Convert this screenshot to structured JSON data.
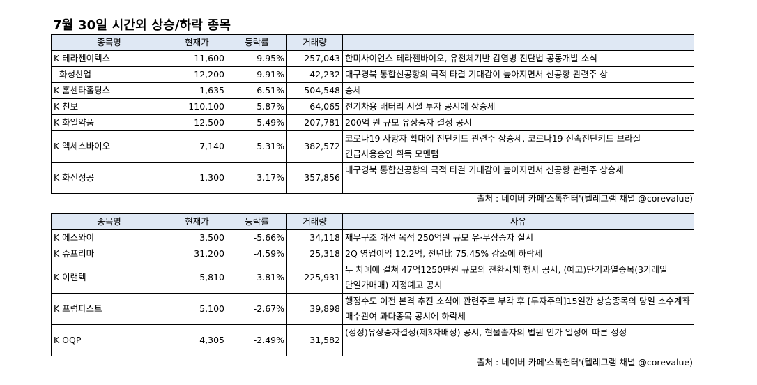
{
  "title": "7월 30일  시간외 상승/하락 종목",
  "up_table": {
    "headers": [
      "종목명",
      "현재가",
      "등락률",
      "거래량",
      ""
    ],
    "rows": [
      {
        "name": "K 테라젠이텍스",
        "price": "11,600",
        "change": "9.95%",
        "volume": "257,043",
        "reason": "한미사이언스-테라젠바이오, 유전체기반 감염병 진단법 공동개발 소식"
      },
      {
        "name": "  화성산업",
        "price": "12,200",
        "change": "9.91%",
        "volume": "42,232",
        "reason": "대구경북 통합신공항의 극적 타결 기대감이 높아지면서 신공항 관련주 상"
      },
      {
        "name": "K 홈센타홀딩스",
        "price": "1,635",
        "change": "6.51%",
        "volume": "504,548",
        "reason": "승세"
      },
      {
        "name": "K 천보",
        "price": "110,100",
        "change": "5.87%",
        "volume": "64,065",
        "reason": "전기차용 배터리 시설 투자 공시에 상승세"
      },
      {
        "name": "K 화일약품",
        "price": "12,500",
        "change": "5.49%",
        "volume": "207,781",
        "reason": "200억 원 규모 유상증자 결정 공시"
      },
      {
        "name": "K 엑세스바이오",
        "price": "7,140",
        "change": "5.31%",
        "volume": "382,572",
        "reason": "코로나19 사망자 확대에 진단키트 관련주 상승세, 코로나19 신속진단키트 브라질 긴급사용승인 획득 모멘텀"
      },
      {
        "name": "K 화신정공",
        "price": "1,300",
        "change": "3.17%",
        "volume": "357,856",
        "reason": "대구경북 통합신공항의 극적 타결 기대감이 높아지면서 신공항 관련주 상승세"
      }
    ]
  },
  "up_source": "출처 : 네이버 카페'스톡헌터'(텔레그램 채널 @corevalue)",
  "down_table": {
    "headers": [
      "종목명",
      "현재가",
      "등락률",
      "거래량",
      "사유"
    ],
    "rows": [
      {
        "name": "K 에스와이",
        "price": "3,500",
        "change": "-5.66%",
        "volume": "34,118",
        "reason": "재무구조 개선 목적 250억원 규모 유·무상증자 실시"
      },
      {
        "name": "K 슈프리마",
        "price": "31,200",
        "change": "-4.59%",
        "volume": "25,318",
        "reason": "2Q 영업이익 12.2억, 전년比 75.45% 감소에 하락세"
      },
      {
        "name": "K 이랜텍",
        "price": "5,810",
        "change": "-3.81%",
        "volume": "225,931",
        "reason": "두 차례에 걸쳐 47억1250만원 규모의 전환사채 행사 공시,  (예고)단기과열종목(3거래일 단일가매매) 지정예고 공시"
      },
      {
        "name": "K 프럼파스트",
        "price": "5,100",
        "change": "-2.67%",
        "volume": "39,898",
        "reason": "행정수도 이전 본격 추진 소식에 관련주로 부각 후 [투자주의]15일간 상승종목의 당일 소수계좌 매수관여 과다종목 공시에 하락세"
      },
      {
        "name": "K OQP",
        "price": "4,305",
        "change": "-2.49%",
        "volume": "31,582",
        "reason": "(정정)유상증자결정(제3자배정) 공시, 현물출자의 법원 인가 일정에 따른 정정"
      }
    ]
  },
  "down_source": "출처 : 네이버 카페'스톡헌터'(텔레그램 채널 @corevalue)",
  "colors": {
    "header_bg": "#dfe8f4",
    "border": "#000000"
  }
}
